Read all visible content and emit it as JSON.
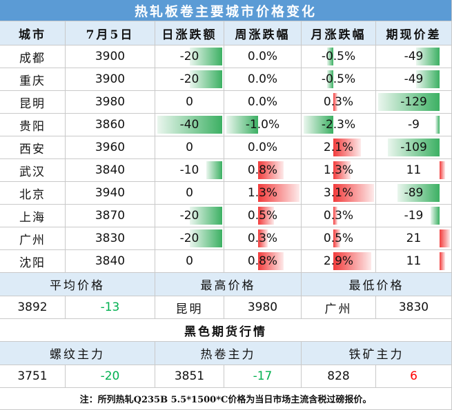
{
  "title": "热轧板卷主要城市价格变化",
  "table": {
    "header": [
      "城市",
      "7月5日",
      "日涨跌额",
      "周涨跌幅",
      "月涨跌幅",
      "期现价差"
    ],
    "rows": [
      [
        "成都",
        "3900",
        "-20",
        "0.0%",
        "-0.5%",
        "-49"
      ],
      [
        "重庆",
        "3900",
        "-20",
        "0.0%",
        "-0.5%",
        "-49"
      ],
      [
        "昆明",
        "3980",
        "0",
        "0.0%",
        "0.3%",
        "-129"
      ],
      [
        "贵阳",
        "3860",
        "-40",
        "-1.0%",
        "-2.3%",
        "-9"
      ],
      [
        "西安",
        "3960",
        "0",
        "0.0%",
        "2.1%",
        "-109"
      ],
      [
        "武汉",
        "3840",
        "-10",
        "0.8%",
        "1.3%",
        "11"
      ],
      [
        "北京",
        "3940",
        "0",
        "1.3%",
        "3.1%",
        "-89"
      ],
      [
        "上海",
        "3870",
        "-20",
        "0.5%",
        "0.3%",
        "-19"
      ],
      [
        "广州",
        "3830",
        "-20",
        "0.3%",
        "0.5%",
        "21"
      ],
      [
        "沈阳",
        "3840",
        "0",
        "0.8%",
        "2.9%",
        "11"
      ]
    ]
  },
  "summary": {
    "labels": [
      "平均价格",
      "最高价格",
      "最低价格"
    ],
    "values": [
      "3892",
      "-13",
      "昆明",
      "3980",
      "广州",
      "3830"
    ]
  },
  "futures": {
    "title": "黑色期货行情",
    "labels": [
      "螺纹主力",
      "热卷主力",
      "铁矿主力"
    ],
    "values": [
      "3751",
      "-20",
      "3851",
      "-17",
      "828",
      "6"
    ]
  },
  "note": "注：所列热轧Q235B 5.5*1500*C价格为当日市场主流含税过磅报价。"
}
